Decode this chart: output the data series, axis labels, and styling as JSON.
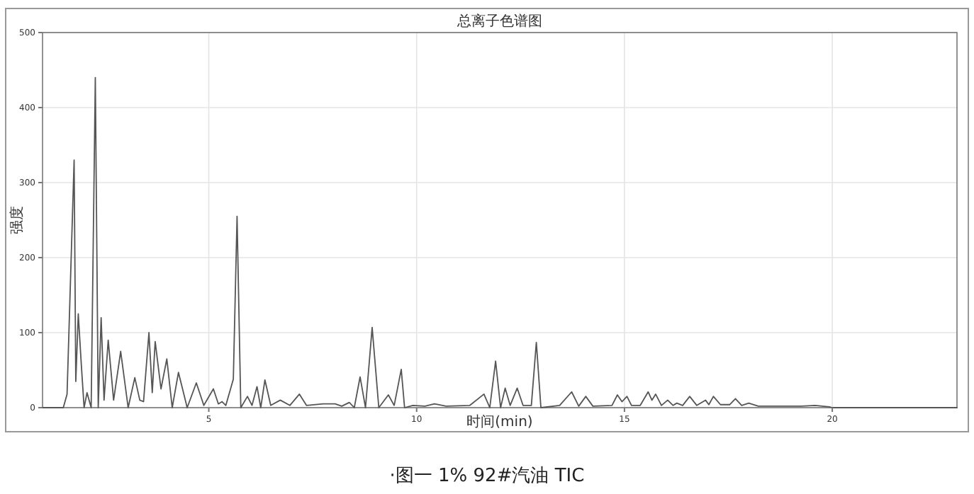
{
  "chart_data": {
    "type": "line",
    "title": "总离子色谱图",
    "xlabel": "时间(min)",
    "ylabel": "强度",
    "annotations": [
      "·图一 1% 92#汽油 TIC"
    ],
    "xlim": [
      1,
      23
    ],
    "xticks": [
      5,
      10,
      15,
      20
    ],
    "ylim": [
      0,
      500
    ],
    "yticks": [
      0,
      100,
      200,
      300,
      400,
      500
    ],
    "grid": true,
    "marker": "none",
    "line_style": "solid",
    "series": [
      {
        "color": "#555555",
        "x": [
          1,
          1.5,
          1.59,
          1.76,
          1.8,
          1.86,
          1.93,
          2.0,
          2.07,
          2.17,
          2.27,
          2.34,
          2.41,
          2.48,
          2.58,
          2.71,
          2.88,
          3.06,
          3.22,
          3.34,
          3.43,
          3.56,
          3.64,
          3.71,
          3.85,
          3.99,
          4.12,
          4.27,
          4.48,
          4.7,
          4.88,
          5.11,
          5.23,
          5.32,
          5.41,
          5.59,
          5.68,
          5.77,
          5.93,
          6.04,
          6.16,
          6.25,
          6.35,
          6.49,
          6.72,
          6.95,
          7.18,
          7.35,
          7.75,
          8.04,
          8.2,
          8.38,
          8.5,
          8.64,
          8.77,
          8.93,
          9.09,
          9.32,
          9.46,
          9.63,
          9.71,
          9.91,
          10.2,
          10.43,
          10.71,
          11.28,
          11.62,
          11.76,
          11.9,
          12.02,
          12.13,
          12.25,
          12.42,
          12.56,
          12.76,
          12.88,
          12.99,
          13.44,
          13.73,
          13.9,
          14.07,
          14.24,
          14.7,
          14.83,
          14.94,
          15.06,
          15.17,
          15.38,
          15.57,
          15.66,
          15.75,
          15.89,
          16.04,
          16.17,
          16.26,
          16.4,
          16.57,
          16.74,
          16.95,
          17.03,
          17.14,
          17.31,
          17.53,
          17.67,
          17.82,
          17.99,
          18.22,
          19.25,
          19.59,
          19.93,
          20.0,
          23
        ],
        "values": [
          0,
          0,
          18,
          330,
          35,
          125,
          60,
          0,
          20,
          0,
          440,
          0,
          120,
          10,
          90,
          10,
          75,
          0,
          40,
          10,
          8,
          100,
          20,
          88,
          25,
          65,
          0,
          47,
          0,
          33,
          3,
          25,
          5,
          8,
          3,
          38,
          255,
          0,
          15,
          3,
          28,
          0,
          37,
          3,
          10,
          3,
          18,
          3,
          5,
          5,
          2,
          7,
          0,
          41,
          0,
          107,
          0,
          17,
          3,
          51,
          0,
          3,
          2,
          5,
          2,
          3,
          18,
          0,
          62,
          0,
          26,
          3,
          26,
          3,
          3,
          87,
          0,
          3,
          21,
          2,
          15,
          2,
          3,
          17,
          8,
          15,
          3,
          3,
          21,
          10,
          18,
          3,
          10,
          3,
          6,
          3,
          15,
          3,
          10,
          4,
          15,
          4,
          4,
          12,
          3,
          6,
          2,
          2,
          3,
          1,
          0,
          0
        ]
      }
    ]
  }
}
